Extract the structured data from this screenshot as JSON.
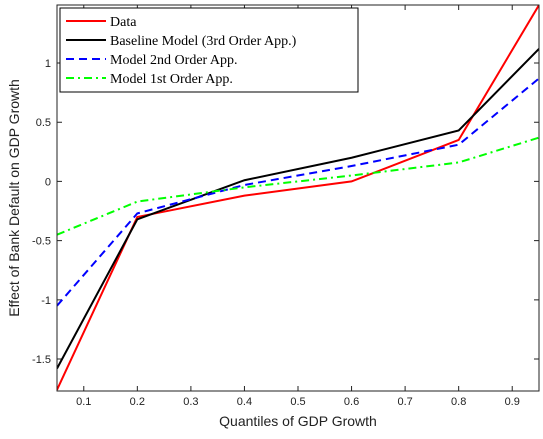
{
  "chart_data": {
    "type": "line",
    "xlabel": "Quantiles of GDP Growth",
    "ylabel": "Effect of Bank Default on GDP Growth",
    "x": [
      0.05,
      0.2,
      0.4,
      0.6,
      0.8,
      0.95
    ],
    "series": [
      {
        "name": "Data",
        "color": "#ff0000",
        "style": "solid",
        "values": [
          -1.76,
          -0.3,
          -0.12,
          0.0,
          0.35,
          1.49
        ]
      },
      {
        "name": "Baseline Model (3rd Order App.)",
        "color": "#000000",
        "style": "solid",
        "values": [
          -1.58,
          -0.32,
          0.01,
          0.2,
          0.43,
          1.12
        ]
      },
      {
        "name": "Model 2nd Order App.",
        "color": "#0000ff",
        "style": "dashed",
        "values": [
          -1.05,
          -0.27,
          -0.03,
          0.13,
          0.31,
          0.87
        ]
      },
      {
        "name": "Model 1st Order App.",
        "color": "#00ff00",
        "style": "dashdot",
        "values": [
          -0.45,
          -0.17,
          -0.05,
          0.05,
          0.16,
          0.37
        ]
      }
    ],
    "xlim": [
      0.05,
      0.95
    ],
    "xticks": [
      0.1,
      0.2,
      0.3,
      0.4,
      0.5,
      0.6,
      0.7,
      0.8,
      0.9
    ],
    "ylim": [
      -1.77,
      1.49
    ],
    "yticks": [
      -1.5,
      -1,
      -0.5,
      0,
      0.5,
      1
    ],
    "legend": "upper-left"
  }
}
